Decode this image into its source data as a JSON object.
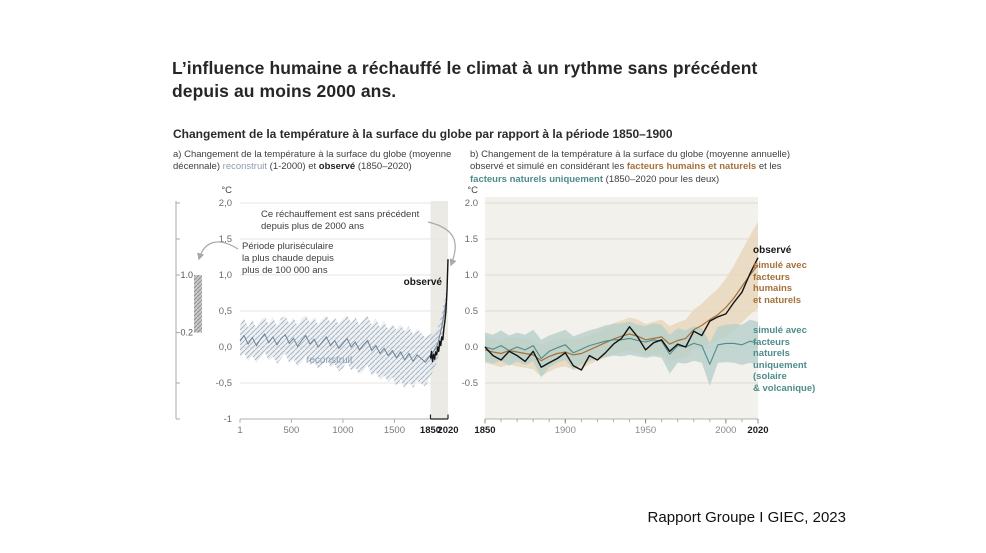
{
  "slide": {
    "title": "L’influence humaine a réchauffé le climat à un rythme sans précédent\ndepuis au moins 2000 ans.",
    "subtitle": "Changement de la température à la surface du globe par rapport à la période 1850–1900",
    "source": "Rapport Groupe I GIEC, 2023"
  },
  "colors": {
    "observed": "#141414",
    "reconstruct_line": "#6e8397",
    "reconstruct_band": "#dfe5eb",
    "reconstruct_hatch": "#9fadbd",
    "reconstruct_text": "#8b9cb0",
    "human": "#a4713a",
    "human_band": "#e7d7bd",
    "natural": "#4e8c8b",
    "natural_band": "#b6cfcb",
    "grid_a": "#e8e6e0",
    "grid_b": "#dfdcd5",
    "axis": "#b3b0a9",
    "tick_label": "#6b6b6b",
    "tick_label_bold": "#1c1c1c",
    "highlight_strip": "#eceae4",
    "panel_b_bg": "#f3f1eb",
    "arrow": "#a8a8a8",
    "scalebar_fill": "#c9c9c9",
    "scalebar_hatch": "#8f8f8f"
  },
  "chart_data": [
    {
      "type": "line",
      "panel": "a",
      "title_parts": [
        {
          "style": "plain",
          "text": "a) Changement de la température à la surface du globe (moyenne décennale) "
        },
        {
          "style": "reconstruct",
          "text": "reconstruit"
        },
        {
          "style": "plain",
          "text": " (1-2000) et "
        },
        {
          "style": "bold",
          "text": "observé"
        },
        {
          "style": "plain",
          "text": " (1850–2020)"
        }
      ],
      "unit": "°C",
      "xlim": [
        1,
        2020
      ],
      "ylim": [
        -1,
        2
      ],
      "grid": true,
      "yticks": [
        {
          "label": "2,0",
          "v": 2
        },
        {
          "label": "1,5",
          "v": 1.5
        },
        {
          "label": "1,0",
          "v": 1
        },
        {
          "label": "0,5",
          "v": 0.5
        },
        {
          "label": "0,0",
          "v": 0
        },
        {
          "label": "-0,5",
          "v": -0.5
        },
        {
          "label": "-1",
          "v": -1
        }
      ],
      "xticks": [
        {
          "label": "1",
          "v": 1
        },
        {
          "label": "500",
          "v": 500
        },
        {
          "label": "1000",
          "v": 1000
        },
        {
          "label": "1500",
          "v": 1500
        },
        {
          "label": "1850",
          "v": 1850,
          "bold": true
        },
        {
          "label": "2020",
          "v": 2020,
          "bold": true
        }
      ],
      "highlight_span": [
        1850,
        2020
      ],
      "scalebar": {
        "span": [
          0.2,
          1.0
        ],
        "ticks": [
          2,
          1.5,
          1,
          0.2,
          -0.5,
          -1
        ],
        "labels": [
          {
            "text": "1.0",
            "v": 1.0
          },
          {
            "text": "0.2",
            "v": 0.2
          }
        ]
      },
      "annotations": {
        "warming": "Ce réchauffement est sans précédent\ndepuis plus de 2000 ans",
        "warmest": "Période pluriséculaire\nla plus chaude depuis\nplus de 100 000 ans",
        "observed": "observé",
        "reconstruct": "reconstruit"
      },
      "series": [
        {
          "name": "reconstruit",
          "role": "reconstruct",
          "x": [
            1,
            40,
            80,
            120,
            160,
            200,
            240,
            280,
            320,
            360,
            400,
            440,
            480,
            520,
            560,
            600,
            640,
            680,
            720,
            760,
            800,
            840,
            880,
            920,
            960,
            1000,
            1040,
            1080,
            1120,
            1160,
            1200,
            1240,
            1280,
            1320,
            1360,
            1400,
            1440,
            1480,
            1520,
            1560,
            1600,
            1640,
            1680,
            1720,
            1760,
            1800,
            1840,
            1880,
            1920,
            1960,
            2000
          ],
          "y": [
            0.08,
            0.16,
            0.04,
            0.13,
            0.02,
            0.11,
            0.18,
            0.06,
            0.14,
            0.03,
            0.12,
            0.17,
            0.05,
            0.12,
            0.01,
            0.09,
            0.16,
            0.04,
            0.11,
            0.0,
            0.07,
            0.14,
            0.02,
            0.09,
            -0.02,
            0.05,
            0.12,
            0.0,
            0.07,
            -0.04,
            0.03,
            0.09,
            -0.05,
            0.02,
            -0.09,
            -0.02,
            -0.12,
            -0.05,
            -0.15,
            -0.07,
            -0.18,
            -0.09,
            -0.2,
            -0.11,
            -0.16,
            -0.21,
            -0.13,
            -0.06,
            0.04,
            0.28,
            0.62
          ],
          "band_halfwidth": [
            0.22,
            0.24,
            0.23,
            0.25,
            0.24,
            0.26,
            0.24,
            0.25,
            0.27,
            0.26,
            0.28,
            0.26,
            0.27,
            0.29,
            0.28,
            0.3,
            0.28,
            0.29,
            0.31,
            0.3,
            0.32,
            0.3,
            0.31,
            0.33,
            0.32,
            0.34,
            0.32,
            0.33,
            0.35,
            0.34,
            0.36,
            0.34,
            0.35,
            0.37,
            0.36,
            0.38,
            0.36,
            0.37,
            0.39,
            0.38,
            0.4,
            0.38,
            0.37,
            0.36,
            0.35,
            0.34,
            0.3,
            0.26,
            0.22,
            0.18,
            0.15
          ]
        },
        {
          "name": "observé",
          "role": "observed",
          "x": [
            1850,
            1860,
            1870,
            1880,
            1890,
            1900,
            1910,
            1920,
            1930,
            1940,
            1950,
            1960,
            1970,
            1980,
            1990,
            2000,
            2010,
            2020
          ],
          "y": [
            -0.16,
            -0.06,
            -0.2,
            -0.1,
            -0.17,
            -0.07,
            -0.11,
            0.0,
            -0.06,
            0.08,
            0.02,
            0.14,
            0.1,
            0.26,
            0.36,
            0.5,
            0.78,
            1.22
          ]
        }
      ]
    },
    {
      "type": "line",
      "panel": "b",
      "title_parts": [
        {
          "style": "plain",
          "text": "b) Changement de la température à la surface du globe (moyenne annuelle) observé et simulé en considérant les "
        },
        {
          "style": "human",
          "text": "facteurs humains et naturels"
        },
        {
          "style": "plain",
          "text": " et les "
        },
        {
          "style": "natural",
          "text": "facteurs naturels uniquement"
        },
        {
          "style": "plain",
          "text": " (1850–2020 pour les deux)"
        }
      ],
      "unit": "°C",
      "xlim": [
        1850,
        2020
      ],
      "ylim": [
        -1,
        2
      ],
      "grid": true,
      "yticks": [
        {
          "label": "2.0",
          "v": 2
        },
        {
          "label": "1.5",
          "v": 1.5
        },
        {
          "label": "1.0",
          "v": 1
        },
        {
          "label": "0.5",
          "v": 0.5
        },
        {
          "label": "0.0",
          "v": 0
        },
        {
          "label": "-0.5",
          "v": -0.5
        }
      ],
      "xticks": [
        {
          "label": "1850",
          "v": 1850,
          "bold": true
        },
        {
          "label": "1900",
          "v": 1900
        },
        {
          "label": "1950",
          "v": 1950
        },
        {
          "label": "2000",
          "v": 2000
        },
        {
          "label": "2020",
          "v": 2020,
          "bold": true
        }
      ],
      "xminor_step": 10,
      "legend": {
        "observed": "observé",
        "human": "simulé avec\nfacteurs\nhumains\net naturels",
        "natural": "simulé avec\nfacteurs\nnaturels\nuniquement\n(solaire\n& volcanique)"
      },
      "series": [
        {
          "name": "simulé avec facteurs humains et naturels",
          "role": "human_natural",
          "x": [
            1850,
            1855,
            1860,
            1865,
            1870,
            1875,
            1880,
            1885,
            1890,
            1895,
            1900,
            1905,
            1910,
            1915,
            1920,
            1925,
            1930,
            1935,
            1940,
            1945,
            1950,
            1955,
            1960,
            1965,
            1970,
            1975,
            1980,
            1985,
            1990,
            1995,
            2000,
            2005,
            2010,
            2015,
            2020
          ],
          "y": [
            -0.04,
            -0.07,
            -0.09,
            -0.05,
            -0.07,
            -0.09,
            -0.11,
            -0.19,
            -0.13,
            -0.09,
            -0.07,
            -0.11,
            -0.09,
            -0.04,
            0.01,
            0.06,
            0.11,
            0.15,
            0.18,
            0.15,
            0.1,
            0.12,
            0.14,
            0.04,
            0.09,
            0.12,
            0.24,
            0.3,
            0.38,
            0.45,
            0.55,
            0.68,
            0.84,
            1.0,
            1.14
          ],
          "band_halfwidth": [
            0.18,
            0.18,
            0.19,
            0.19,
            0.2,
            0.2,
            0.2,
            0.22,
            0.21,
            0.2,
            0.2,
            0.21,
            0.21,
            0.2,
            0.2,
            0.21,
            0.22,
            0.22,
            0.23,
            0.23,
            0.22,
            0.23,
            0.24,
            0.25,
            0.25,
            0.26,
            0.28,
            0.3,
            0.33,
            0.36,
            0.4,
            0.45,
            0.5,
            0.55,
            0.6
          ]
        },
        {
          "name": "simulé avec facteurs naturels uniquement (solaire & volcanique)",
          "role": "natural",
          "x": [
            1850,
            1855,
            1860,
            1865,
            1870,
            1875,
            1880,
            1885,
            1890,
            1895,
            1900,
            1905,
            1910,
            1915,
            1920,
            1925,
            1930,
            1935,
            1940,
            1945,
            1950,
            1955,
            1960,
            1965,
            1970,
            1975,
            1980,
            1985,
            1990,
            1995,
            2000,
            2005,
            2010,
            2015,
            2020
          ],
          "y": [
            0.0,
            -0.03,
            0.02,
            -0.05,
            0.0,
            -0.04,
            0.02,
            -0.16,
            -0.06,
            -0.01,
            0.03,
            -0.08,
            -0.03,
            0.02,
            0.05,
            0.08,
            0.1,
            0.1,
            0.12,
            0.09,
            0.07,
            0.1,
            0.08,
            -0.1,
            0.02,
            0.0,
            0.05,
            0.02,
            -0.24,
            0.03,
            0.05,
            0.05,
            0.03,
            0.08,
            0.05
          ],
          "band_halfwidth": [
            0.2,
            0.2,
            0.21,
            0.21,
            0.2,
            0.21,
            0.22,
            0.26,
            0.22,
            0.21,
            0.21,
            0.23,
            0.22,
            0.21,
            0.21,
            0.22,
            0.22,
            0.23,
            0.23,
            0.22,
            0.22,
            0.23,
            0.23,
            0.27,
            0.24,
            0.23,
            0.24,
            0.24,
            0.3,
            0.25,
            0.26,
            0.27,
            0.28,
            0.3,
            0.3
          ]
        },
        {
          "name": "observé",
          "role": "observed",
          "x": [
            1850,
            1855,
            1860,
            1865,
            1870,
            1875,
            1880,
            1885,
            1890,
            1895,
            1900,
            1905,
            1910,
            1915,
            1920,
            1925,
            1930,
            1935,
            1940,
            1945,
            1950,
            1955,
            1960,
            1965,
            1970,
            1975,
            1980,
            1985,
            1990,
            1995,
            2000,
            2005,
            2010,
            2015,
            2020
          ],
          "y": [
            0.0,
            -0.12,
            -0.18,
            -0.06,
            -0.12,
            -0.2,
            -0.06,
            -0.28,
            -0.22,
            -0.16,
            -0.08,
            -0.26,
            -0.32,
            -0.12,
            -0.18,
            -0.08,
            0.04,
            0.12,
            0.28,
            0.14,
            -0.04,
            0.06,
            0.1,
            -0.06,
            0.04,
            0.0,
            0.22,
            0.16,
            0.36,
            0.42,
            0.46,
            0.62,
            0.76,
            1.02,
            1.24
          ]
        }
      ]
    }
  ]
}
